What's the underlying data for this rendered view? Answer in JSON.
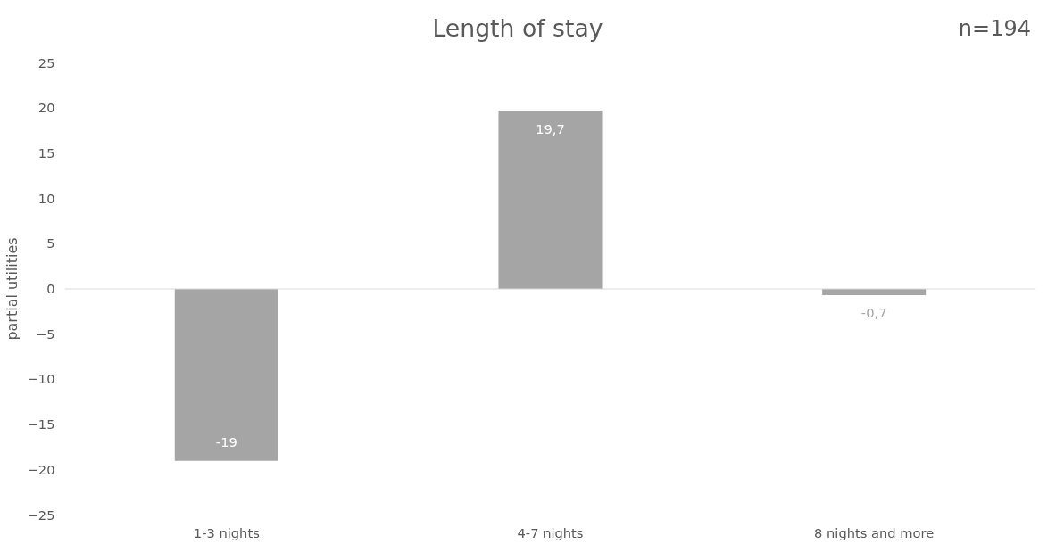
{
  "chart_data": {
    "type": "bar",
    "title": "Length of stay",
    "ylabel": "partial utilities",
    "categories": [
      "1-3 nights",
      "4-7 nights",
      "8 nights and more"
    ],
    "values": [
      -19,
      19.7,
      -0.7
    ],
    "value_labels": [
      "-19",
      "19,7",
      "-0,7"
    ],
    "color": "#a5a5a5",
    "ylim": [
      -25,
      25
    ],
    "yticks": [
      -25,
      -20,
      -15,
      -10,
      -5,
      0,
      5,
      10,
      15,
      20,
      25
    ],
    "grid": false,
    "ref_lines": [
      {
        "axis": "y",
        "value": 0,
        "color": "#d9d9d9"
      }
    ],
    "annotations": [
      "n=194"
    ]
  }
}
